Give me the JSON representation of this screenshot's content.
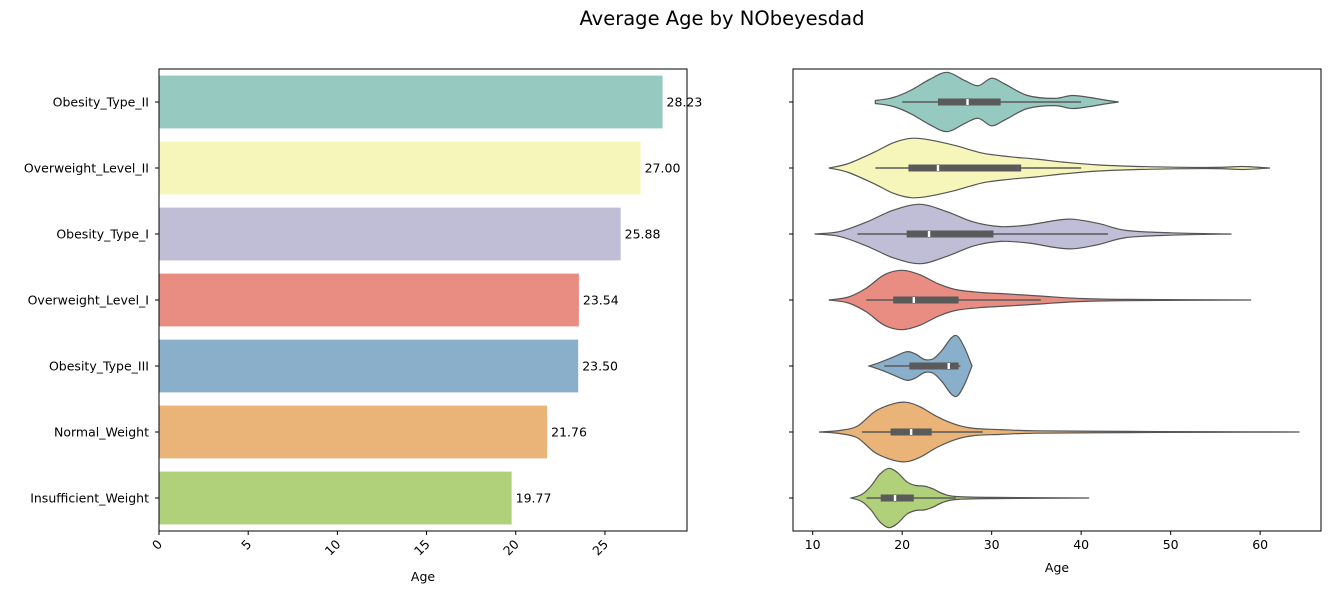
{
  "chart_data": [
    {
      "type": "bar",
      "orientation": "horizontal",
      "title": "Average Age by NObeyesdad",
      "categories": [
        "Obesity_Type_II",
        "Overweight_Level_II",
        "Obesity_Type_I",
        "Overweight_Level_I",
        "Obesity_Type_III",
        "Normal_Weight",
        "Insufficient_Weight"
      ],
      "values": [
        28.23,
        27.0,
        25.88,
        23.54,
        23.5,
        21.76,
        19.77
      ],
      "value_labels": [
        "28.23",
        "27.00",
        "25.88",
        "23.54",
        "23.50",
        "21.76",
        "19.77"
      ],
      "colors": [
        "#96c9c0",
        "#f6f6bb",
        "#c0bdd6",
        "#e98c82",
        "#89afca",
        "#eab377",
        "#b0d07a"
      ],
      "xlabel": "Age",
      "ylabel": "",
      "xlim": [
        0,
        29.6
      ],
      "xticks": [
        0,
        5,
        10,
        15,
        20,
        25
      ],
      "xtick_labels": [
        "0",
        "5",
        "10",
        "15",
        "20",
        "25"
      ]
    },
    {
      "type": "violin",
      "orientation": "horizontal",
      "categories": [
        "Obesity_Type_II",
        "Overweight_Level_II",
        "Obesity_Type_I",
        "Overweight_Level_I",
        "Obesity_Type_III",
        "Normal_Weight",
        "Insufficient_Weight"
      ],
      "xlabel": "Age",
      "xlim": [
        7.8,
        66.8
      ],
      "xticks": [
        10,
        20,
        30,
        40,
        50,
        60
      ],
      "xtick_labels": [
        "10",
        "20",
        "30",
        "40",
        "50",
        "60"
      ],
      "colors": [
        "#96c9c0",
        "#f6f6bb",
        "#c0bdd6",
        "#e98c82",
        "#89afca",
        "#eab377",
        "#b0d07a"
      ],
      "violins": [
        {
          "min": 17.0,
          "max": 44.2,
          "q1": 24.0,
          "median": 27.3,
          "q3": 31.0,
          "whisker_low": 20.0,
          "whisker_high": 40.0,
          "density": [
            [
              17,
              0.05
            ],
            [
              19,
              0.15
            ],
            [
              21,
              0.4
            ],
            [
              23,
              0.75
            ],
            [
              25,
              1.0
            ],
            [
              27,
              0.72
            ],
            [
              28.5,
              0.55
            ],
            [
              30,
              0.8
            ],
            [
              31.5,
              0.6
            ],
            [
              34,
              0.22
            ],
            [
              37,
              0.12
            ],
            [
              39,
              0.22
            ],
            [
              41,
              0.15
            ],
            [
              43,
              0.05
            ],
            [
              44.2,
              0.0
            ]
          ]
        },
        {
          "min": 11.8,
          "max": 61.1,
          "q1": 20.7,
          "median": 24.0,
          "q3": 33.3,
          "whisker_low": 17.0,
          "whisker_high": 40.0,
          "density": [
            [
              11.8,
              0.0
            ],
            [
              14,
              0.15
            ],
            [
              17,
              0.55
            ],
            [
              19,
              0.85
            ],
            [
              21,
              1.0
            ],
            [
              23,
              0.95
            ],
            [
              26,
              0.75
            ],
            [
              29,
              0.5
            ],
            [
              32,
              0.38
            ],
            [
              35,
              0.3
            ],
            [
              38,
              0.2
            ],
            [
              42,
              0.1
            ],
            [
              48,
              0.04
            ],
            [
              55,
              0.02
            ],
            [
              58,
              0.05
            ],
            [
              61.1,
              0.0
            ]
          ]
        },
        {
          "min": 10.2,
          "max": 56.8,
          "q1": 20.5,
          "median": 23.0,
          "q3": 30.2,
          "whisker_low": 15.0,
          "whisker_high": 43.0,
          "density": [
            [
              10.2,
              0.0
            ],
            [
              13,
              0.08
            ],
            [
              16,
              0.4
            ],
            [
              19,
              0.8
            ],
            [
              22,
              1.0
            ],
            [
              25,
              0.75
            ],
            [
              28,
              0.4
            ],
            [
              31,
              0.25
            ],
            [
              34,
              0.3
            ],
            [
              37,
              0.45
            ],
            [
              39,
              0.5
            ],
            [
              42,
              0.35
            ],
            [
              45,
              0.12
            ],
            [
              50,
              0.04
            ],
            [
              56.8,
              0.0
            ]
          ]
        },
        {
          "min": 11.8,
          "max": 59.0,
          "q1": 19.0,
          "median": 21.3,
          "q3": 26.3,
          "whisker_low": 16.0,
          "whisker_high": 35.5,
          "density": [
            [
              11.8,
              0.0
            ],
            [
              14,
              0.1
            ],
            [
              16,
              0.4
            ],
            [
              18,
              0.85
            ],
            [
              20,
              1.0
            ],
            [
              22,
              0.85
            ],
            [
              24,
              0.55
            ],
            [
              26,
              0.35
            ],
            [
              29,
              0.25
            ],
            [
              32,
              0.2
            ],
            [
              36,
              0.12
            ],
            [
              40,
              0.05
            ],
            [
              45,
              0.02
            ],
            [
              59,
              0.0
            ]
          ]
        },
        {
          "min": 16.3,
          "max": 27.8,
          "q1": 20.8,
          "median": 25.2,
          "q3": 26.3,
          "whisker_low": 18.0,
          "whisker_high": 26.5,
          "density": [
            [
              16.3,
              0.0
            ],
            [
              17.5,
              0.12
            ],
            [
              19,
              0.3
            ],
            [
              20.5,
              0.48
            ],
            [
              21.5,
              0.4
            ],
            [
              22.5,
              0.22
            ],
            [
              23.5,
              0.25
            ],
            [
              24.5,
              0.55
            ],
            [
              25.5,
              0.95
            ],
            [
              26.2,
              1.0
            ],
            [
              27,
              0.6
            ],
            [
              27.8,
              0.0
            ]
          ]
        },
        {
          "min": 10.7,
          "max": 64.4,
          "q1": 18.7,
          "median": 21.0,
          "q3": 23.3,
          "whisker_low": 15.5,
          "whisker_high": 29.0,
          "density": [
            [
              10.7,
              0.0
            ],
            [
              13,
              0.05
            ],
            [
              15,
              0.2
            ],
            [
              17,
              0.7
            ],
            [
              19,
              0.95
            ],
            [
              20.5,
              1.0
            ],
            [
              22,
              0.85
            ],
            [
              24,
              0.5
            ],
            [
              26,
              0.25
            ],
            [
              28,
              0.12
            ],
            [
              31,
              0.08
            ],
            [
              35,
              0.04
            ],
            [
              45,
              0.02
            ],
            [
              55,
              0.01
            ],
            [
              64.4,
              0.0
            ]
          ]
        },
        {
          "min": 14.3,
          "max": 40.9,
          "q1": 17.6,
          "median": 19.2,
          "q3": 21.3,
          "whisker_low": 16.0,
          "whisker_high": 26.0,
          "density": [
            [
              14.3,
              0.0
            ],
            [
              15.5,
              0.12
            ],
            [
              16.5,
              0.4
            ],
            [
              17.5,
              0.8
            ],
            [
              18.5,
              1.0
            ],
            [
              19.5,
              0.85
            ],
            [
              20.5,
              0.55
            ],
            [
              21.5,
              0.42
            ],
            [
              22.5,
              0.4
            ],
            [
              23.5,
              0.3
            ],
            [
              24.5,
              0.15
            ],
            [
              26,
              0.05
            ],
            [
              30,
              0.02
            ],
            [
              40.9,
              0.0
            ]
          ]
        }
      ]
    }
  ]
}
